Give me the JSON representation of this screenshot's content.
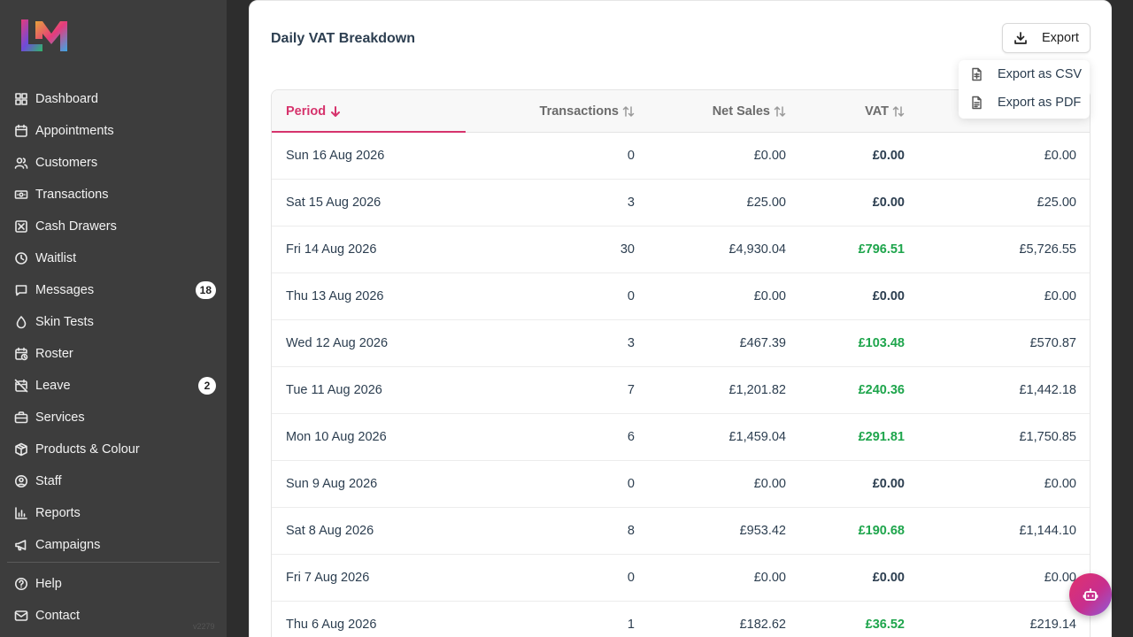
{
  "sidebar": {
    "items": [
      {
        "label": "Dashboard",
        "icon": "dashboard-icon"
      },
      {
        "label": "Appointments",
        "icon": "calendar-icon"
      },
      {
        "label": "Customers",
        "icon": "users-icon"
      },
      {
        "label": "Transactions",
        "icon": "banknote-icon"
      },
      {
        "label": "Cash Drawers",
        "icon": "cash-drawer-icon"
      },
      {
        "label": "Waitlist",
        "icon": "clock-icon"
      },
      {
        "label": "Messages",
        "icon": "message-icon",
        "badge": "18"
      },
      {
        "label": "Skin Tests",
        "icon": "droplet-icon"
      },
      {
        "label": "Roster",
        "icon": "calendar-clock-icon"
      },
      {
        "label": "Leave",
        "icon": "calendar-off-icon",
        "badge": "2"
      },
      {
        "label": "Services",
        "icon": "briefcase-icon"
      },
      {
        "label": "Products & Colour",
        "icon": "package-icon"
      },
      {
        "label": "Staff",
        "icon": "user-circle-icon"
      },
      {
        "label": "Reports",
        "icon": "bar-chart-icon"
      },
      {
        "label": "Campaigns",
        "icon": "megaphone-icon"
      }
    ],
    "bottom": [
      {
        "label": "Help",
        "icon": "help-icon"
      },
      {
        "label": "Contact",
        "icon": "mail-icon"
      }
    ],
    "version": "v2279"
  },
  "card": {
    "title": "Daily VAT Breakdown",
    "export_label": "Export"
  },
  "export_menu": {
    "csv": "Export as CSV",
    "pdf": "Export as PDF"
  },
  "table": {
    "headers": {
      "period": "Period",
      "transactions": "Transactions",
      "net_sales": "Net Sales",
      "vat": "VAT"
    },
    "rows": [
      {
        "period": "Sun 16 Aug 2026",
        "transactions": "0",
        "net": "£0.00",
        "vat": "£0.00",
        "gross": "£0.00"
      },
      {
        "period": "Sat 15 Aug 2026",
        "transactions": "3",
        "net": "£25.00",
        "vat": "£0.00",
        "gross": "£25.00"
      },
      {
        "period": "Fri 14 Aug 2026",
        "transactions": "30",
        "net": "£4,930.04",
        "vat": "£796.51",
        "gross": "£5,726.55"
      },
      {
        "period": "Thu 13 Aug 2026",
        "transactions": "0",
        "net": "£0.00",
        "vat": "£0.00",
        "gross": "£0.00"
      },
      {
        "period": "Wed 12 Aug 2026",
        "transactions": "3",
        "net": "£467.39",
        "vat": "£103.48",
        "gross": "£570.87"
      },
      {
        "period": "Tue 11 Aug 2026",
        "transactions": "7",
        "net": "£1,201.82",
        "vat": "£240.36",
        "gross": "£1,442.18"
      },
      {
        "period": "Mon 10 Aug 2026",
        "transactions": "6",
        "net": "£1,459.04",
        "vat": "£291.81",
        "gross": "£1,750.85"
      },
      {
        "period": "Sun 9 Aug 2026",
        "transactions": "0",
        "net": "£0.00",
        "vat": "£0.00",
        "gross": "£0.00"
      },
      {
        "period": "Sat 8 Aug 2026",
        "transactions": "8",
        "net": "£953.42",
        "vat": "£190.68",
        "gross": "£1,144.10"
      },
      {
        "period": "Fri 7 Aug 2026",
        "transactions": "0",
        "net": "£0.00",
        "vat": "£0.00",
        "gross": "£0.00"
      },
      {
        "period": "Thu 6 Aug 2026",
        "transactions": "1",
        "net": "£182.62",
        "vat": "£36.52",
        "gross": "£219.14"
      }
    ]
  },
  "colors": {
    "accent": "#d6336c",
    "vat_positive": "#1ea54c",
    "sidebar_bg": "#3d3d3d"
  }
}
